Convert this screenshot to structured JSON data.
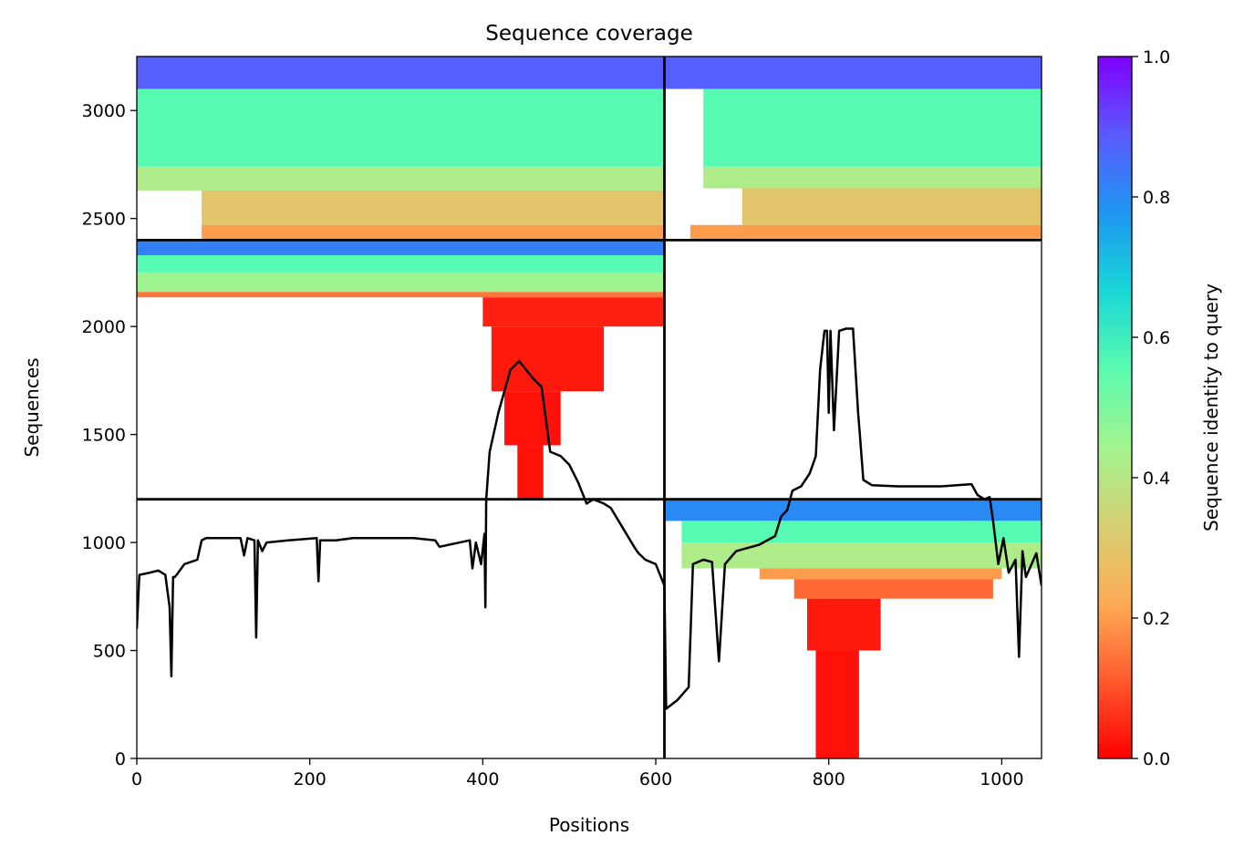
{
  "chart_data": {
    "type": "heatmap",
    "title": "Sequence coverage",
    "xlabel": "Positions",
    "ylabel": "Sequences",
    "xlim": [
      0,
      1046
    ],
    "ylim": [
      0,
      3250
    ],
    "x_ticks": [
      "0",
      "200",
      "400",
      "600",
      "800",
      "1000"
    ],
    "y_ticks": [
      "0",
      "500",
      "1000",
      "1500",
      "2000",
      "2500",
      "3000"
    ],
    "colorbar": {
      "label": "Sequence identity to query",
      "range": [
        0,
        1
      ],
      "ticks": [
        "0.0",
        "0.2",
        "0.4",
        "0.6",
        "0.8",
        "1.0"
      ],
      "colormap": [
        "#ff0000",
        "#ff5a2e",
        "#fdac55",
        "#d6d073",
        "#a2f48f",
        "#5afbb0",
        "#19d7d7",
        "#1e96f1",
        "#5a5afc",
        "#8000ff"
      ]
    },
    "segment_boundaries": {
      "x": [
        610
      ],
      "y": [
        1200,
        2400
      ]
    },
    "coverage_bands": [
      {
        "x0": 0,
        "x1": 610,
        "y0": 3100,
        "y1": 3250,
        "identity": 0.88
      },
      {
        "x0": 0,
        "x1": 610,
        "y0": 2740,
        "y1": 3100,
        "identity": 0.56
      },
      {
        "x0": 0,
        "x1": 610,
        "y0": 2630,
        "y1": 2740,
        "identity": 0.42
      },
      {
        "x0": 75,
        "x1": 610,
        "y0": 2470,
        "y1": 2630,
        "identity": 0.3
      },
      {
        "x0": 75,
        "x1": 610,
        "y0": 2400,
        "y1": 2470,
        "identity": 0.2
      },
      {
        "x0": 610,
        "x1": 1046,
        "y0": 3100,
        "y1": 3250,
        "identity": 0.88
      },
      {
        "x0": 655,
        "x1": 1046,
        "y0": 2740,
        "y1": 3100,
        "identity": 0.56
      },
      {
        "x0": 655,
        "x1": 1046,
        "y0": 2640,
        "y1": 2740,
        "identity": 0.42
      },
      {
        "x0": 700,
        "x1": 1046,
        "y0": 2470,
        "y1": 2640,
        "identity": 0.3
      },
      {
        "x0": 640,
        "x1": 1046,
        "y0": 2400,
        "y1": 2470,
        "identity": 0.2
      },
      {
        "x0": 0,
        "x1": 610,
        "y0": 2330,
        "y1": 2400,
        "identity": 0.82
      },
      {
        "x0": 0,
        "x1": 610,
        "y0": 2250,
        "y1": 2330,
        "identity": 0.56
      },
      {
        "x0": 0,
        "x1": 610,
        "y0": 2160,
        "y1": 2250,
        "identity": 0.45
      },
      {
        "x0": 0,
        "x1": 610,
        "y0": 2135,
        "y1": 2160,
        "identity": 0.15
      },
      {
        "x0": 400,
        "x1": 610,
        "y0": 2000,
        "y1": 2135,
        "identity": 0.04
      },
      {
        "x0": 410,
        "x1": 540,
        "y0": 1700,
        "y1": 2000,
        "identity": 0.03
      },
      {
        "x0": 425,
        "x1": 490,
        "y0": 1450,
        "y1": 1700,
        "identity": 0.02
      },
      {
        "x0": 440,
        "x1": 470,
        "y0": 1200,
        "y1": 1450,
        "identity": 0.02
      },
      {
        "x0": 610,
        "x1": 1046,
        "y0": 1100,
        "y1": 1200,
        "identity": 0.8
      },
      {
        "x0": 630,
        "x1": 1046,
        "y0": 1000,
        "y1": 1100,
        "identity": 0.56
      },
      {
        "x0": 630,
        "x1": 1046,
        "y0": 880,
        "y1": 1000,
        "identity": 0.42
      },
      {
        "x0": 720,
        "x1": 1000,
        "y0": 830,
        "y1": 880,
        "identity": 0.2
      },
      {
        "x0": 760,
        "x1": 990,
        "y0": 740,
        "y1": 830,
        "identity": 0.13
      },
      {
        "x0": 775,
        "x1": 860,
        "y0": 500,
        "y1": 740,
        "identity": 0.03
      },
      {
        "x0": 785,
        "x1": 835,
        "y0": 0,
        "y1": 500,
        "identity": 0.02
      }
    ],
    "coverage_line": {
      "x": [
        0,
        3,
        15,
        25,
        33,
        38,
        40,
        42,
        44,
        46,
        55,
        70,
        75,
        80,
        95,
        120,
        124,
        128,
        136,
        138,
        140,
        145,
        150,
        175,
        208,
        210,
        212,
        230,
        250,
        280,
        300,
        320,
        345,
        350,
        385,
        388,
        392,
        398,
        402,
        403,
        404,
        408,
        418,
        432,
        442,
        458,
        468,
        478,
        484,
        490,
        500,
        510,
        520,
        528,
        534,
        540,
        548,
        575,
        580,
        588,
        600,
        610,
        612,
        625,
        638,
        643,
        655,
        665,
        673,
        680,
        693,
        720,
        738,
        745,
        752,
        758,
        768,
        778,
        785,
        790,
        795,
        798,
        800,
        802,
        806,
        812,
        820,
        828,
        834,
        836,
        840,
        850,
        880,
        930,
        965,
        972,
        980,
        986,
        990,
        996,
        1002,
        1008,
        1016,
        1020,
        1024,
        1028,
        1040,
        1046
      ],
      "y": [
        600,
        850,
        860,
        870,
        850,
        700,
        380,
        840,
        840,
        850,
        900,
        920,
        1010,
        1020,
        1020,
        1020,
        940,
        1020,
        1010,
        560,
        1010,
        960,
        1000,
        1010,
        1020,
        820,
        1010,
        1010,
        1020,
        1020,
        1020,
        1020,
        1010,
        980,
        1010,
        880,
        1000,
        900,
        1040,
        700,
        1200,
        1420,
        1600,
        1800,
        1840,
        1760,
        1720,
        1420,
        1410,
        1400,
        1360,
        1280,
        1180,
        1200,
        1190,
        1180,
        1160,
        980,
        950,
        920,
        900,
        800,
        230,
        270,
        330,
        900,
        920,
        910,
        450,
        900,
        960,
        990,
        1030,
        1120,
        1150,
        1240,
        1260,
        1320,
        1400,
        1800,
        1980,
        1980,
        1600,
        1980,
        1520,
        1980,
        1990,
        1990,
        1600,
        1500,
        1290,
        1265,
        1260,
        1260,
        1270,
        1220,
        1200,
        1210,
        1100,
        900,
        1020,
        860,
        920,
        470,
        960,
        840,
        950,
        800
      ]
    }
  }
}
